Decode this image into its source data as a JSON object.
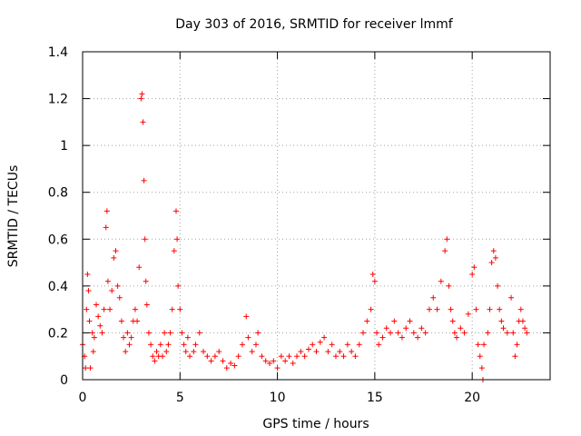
{
  "chart_data": {
    "type": "scatter",
    "title": "Day 303 of 2016, SRMTID for receiver lmmf",
    "xlabel": "GPS time / hours",
    "ylabel": "SRMTID / TECUs",
    "xlim": [
      0,
      24
    ],
    "ylim": [
      0,
      1.4
    ],
    "xticks": [
      0,
      5,
      10,
      15,
      20
    ],
    "xtick_labels": [
      "0",
      "5",
      "10",
      "15",
      "20"
    ],
    "yticks": [
      0,
      0.2,
      0.4,
      0.6,
      0.8,
      1,
      1.2,
      1.4
    ],
    "ytick_labels": [
      "0",
      "0.2",
      "0.4",
      "0.6",
      "0.8",
      "1",
      "1.2",
      "1.4"
    ],
    "grid": true,
    "marker": "+",
    "series": [
      {
        "name": "SRMTID",
        "color": "#ff0000",
        "points": [
          [
            0.0,
            0.15
          ],
          [
            0.1,
            0.1
          ],
          [
            0.15,
            0.05
          ],
          [
            0.2,
            0.3
          ],
          [
            0.25,
            0.45
          ],
          [
            0.3,
            0.38
          ],
          [
            0.35,
            0.25
          ],
          [
            0.4,
            0.05
          ],
          [
            0.5,
            0.2
          ],
          [
            0.55,
            0.12
          ],
          [
            0.6,
            0.18
          ],
          [
            0.7,
            0.32
          ],
          [
            0.8,
            0.27
          ],
          [
            0.9,
            0.23
          ],
          [
            1.0,
            0.2
          ],
          [
            1.1,
            0.3
          ],
          [
            1.2,
            0.65
          ],
          [
            1.25,
            0.72
          ],
          [
            1.3,
            0.42
          ],
          [
            1.4,
            0.3
          ],
          [
            1.5,
            0.38
          ],
          [
            1.6,
            0.52
          ],
          [
            1.7,
            0.55
          ],
          [
            1.8,
            0.4
          ],
          [
            1.9,
            0.35
          ],
          [
            2.0,
            0.25
          ],
          [
            2.1,
            0.18
          ],
          [
            2.2,
            0.12
          ],
          [
            2.3,
            0.2
          ],
          [
            2.4,
            0.15
          ],
          [
            2.5,
            0.18
          ],
          [
            2.6,
            0.25
          ],
          [
            2.7,
            0.3
          ],
          [
            2.8,
            0.25
          ],
          [
            2.9,
            0.48
          ],
          [
            3.0,
            1.2
          ],
          [
            3.05,
            1.22
          ],
          [
            3.1,
            1.1
          ],
          [
            3.15,
            0.85
          ],
          [
            3.2,
            0.6
          ],
          [
            3.25,
            0.42
          ],
          [
            3.3,
            0.32
          ],
          [
            3.4,
            0.2
          ],
          [
            3.5,
            0.15
          ],
          [
            3.6,
            0.1
          ],
          [
            3.7,
            0.08
          ],
          [
            3.8,
            0.12
          ],
          [
            3.9,
            0.1
          ],
          [
            4.0,
            0.15
          ],
          [
            4.1,
            0.1
          ],
          [
            4.2,
            0.2
          ],
          [
            4.3,
            0.12
          ],
          [
            4.4,
            0.15
          ],
          [
            4.5,
            0.2
          ],
          [
            4.6,
            0.3
          ],
          [
            4.7,
            0.55
          ],
          [
            4.8,
            0.72
          ],
          [
            4.85,
            0.6
          ],
          [
            4.9,
            0.4
          ],
          [
            5.0,
            0.3
          ],
          [
            5.1,
            0.2
          ],
          [
            5.2,
            0.15
          ],
          [
            5.3,
            0.12
          ],
          [
            5.4,
            0.18
          ],
          [
            5.5,
            0.1
          ],
          [
            5.7,
            0.12
          ],
          [
            5.8,
            0.15
          ],
          [
            6.0,
            0.2
          ],
          [
            6.2,
            0.12
          ],
          [
            6.4,
            0.1
          ],
          [
            6.6,
            0.08
          ],
          [
            6.8,
            0.1
          ],
          [
            7.0,
            0.12
          ],
          [
            7.2,
            0.08
          ],
          [
            7.4,
            0.05
          ],
          [
            7.6,
            0.07
          ],
          [
            7.8,
            0.06
          ],
          [
            8.0,
            0.1
          ],
          [
            8.2,
            0.15
          ],
          [
            8.4,
            0.27
          ],
          [
            8.5,
            0.18
          ],
          [
            8.7,
            0.12
          ],
          [
            8.9,
            0.15
          ],
          [
            9.0,
            0.2
          ],
          [
            9.2,
            0.1
          ],
          [
            9.4,
            0.08
          ],
          [
            9.6,
            0.07
          ],
          [
            9.8,
            0.08
          ],
          [
            10.0,
            0.05
          ],
          [
            10.2,
            0.1
          ],
          [
            10.4,
            0.08
          ],
          [
            10.6,
            0.1
          ],
          [
            10.8,
            0.07
          ],
          [
            11.0,
            0.1
          ],
          [
            11.2,
            0.12
          ],
          [
            11.4,
            0.1
          ],
          [
            11.6,
            0.13
          ],
          [
            11.8,
            0.15
          ],
          [
            12.0,
            0.12
          ],
          [
            12.2,
            0.16
          ],
          [
            12.4,
            0.18
          ],
          [
            12.6,
            0.12
          ],
          [
            12.8,
            0.15
          ],
          [
            13.0,
            0.1
          ],
          [
            13.2,
            0.12
          ],
          [
            13.4,
            0.1
          ],
          [
            13.6,
            0.15
          ],
          [
            13.8,
            0.12
          ],
          [
            14.0,
            0.1
          ],
          [
            14.2,
            0.15
          ],
          [
            14.4,
            0.2
          ],
          [
            14.6,
            0.25
          ],
          [
            14.8,
            0.3
          ],
          [
            14.9,
            0.45
          ],
          [
            15.0,
            0.42
          ],
          [
            15.1,
            0.2
          ],
          [
            15.2,
            0.15
          ],
          [
            15.4,
            0.18
          ],
          [
            15.6,
            0.22
          ],
          [
            15.8,
            0.2
          ],
          [
            16.0,
            0.25
          ],
          [
            16.2,
            0.2
          ],
          [
            16.4,
            0.18
          ],
          [
            16.6,
            0.22
          ],
          [
            16.8,
            0.25
          ],
          [
            17.0,
            0.2
          ],
          [
            17.2,
            0.18
          ],
          [
            17.4,
            0.22
          ],
          [
            17.6,
            0.2
          ],
          [
            17.8,
            0.3
          ],
          [
            18.0,
            0.35
          ],
          [
            18.2,
            0.3
          ],
          [
            18.4,
            0.42
          ],
          [
            18.6,
            0.55
          ],
          [
            18.7,
            0.6
          ],
          [
            18.8,
            0.4
          ],
          [
            18.9,
            0.3
          ],
          [
            19.0,
            0.25
          ],
          [
            19.1,
            0.2
          ],
          [
            19.2,
            0.18
          ],
          [
            19.4,
            0.22
          ],
          [
            19.6,
            0.2
          ],
          [
            19.8,
            0.28
          ],
          [
            20.0,
            0.45
          ],
          [
            20.1,
            0.48
          ],
          [
            20.2,
            0.3
          ],
          [
            20.3,
            0.15
          ],
          [
            20.4,
            0.1
          ],
          [
            20.5,
            0.05
          ],
          [
            20.55,
            0.0
          ],
          [
            20.6,
            0.15
          ],
          [
            20.8,
            0.2
          ],
          [
            20.9,
            0.3
          ],
          [
            21.0,
            0.5
          ],
          [
            21.1,
            0.55
          ],
          [
            21.2,
            0.52
          ],
          [
            21.3,
            0.4
          ],
          [
            21.4,
            0.3
          ],
          [
            21.5,
            0.25
          ],
          [
            21.6,
            0.22
          ],
          [
            21.8,
            0.2
          ],
          [
            22.0,
            0.35
          ],
          [
            22.1,
            0.2
          ],
          [
            22.2,
            0.1
          ],
          [
            22.3,
            0.15
          ],
          [
            22.4,
            0.25
          ],
          [
            22.5,
            0.3
          ],
          [
            22.6,
            0.25
          ],
          [
            22.7,
            0.22
          ],
          [
            22.8,
            0.2
          ]
        ]
      }
    ]
  }
}
